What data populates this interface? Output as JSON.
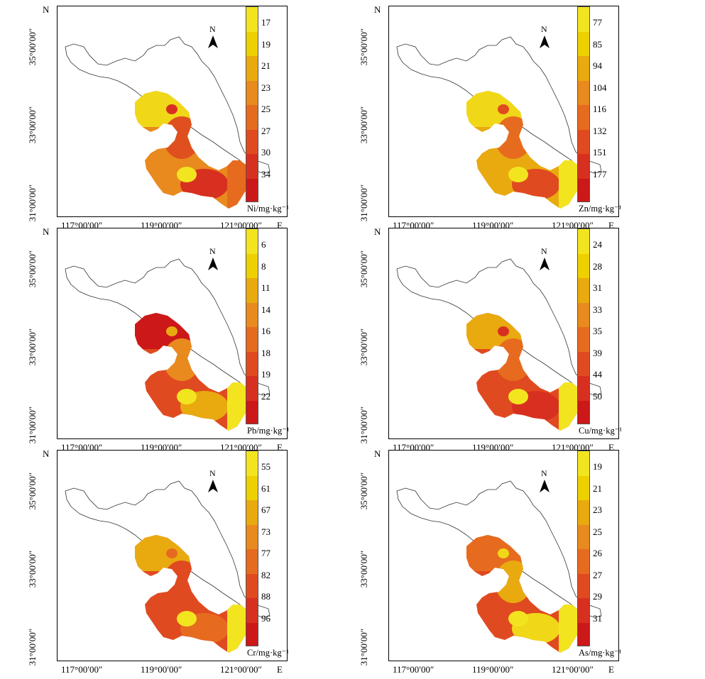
{
  "axes": {
    "lon_labels": [
      "117°00′00″",
      "119°00′00″",
      "121°00′00″"
    ],
    "east": "E",
    "north": "N",
    "lat_labels": [
      "35°00′00″",
      "33°00′00″",
      "31°00′00″"
    ],
    "north_arrow": "N"
  },
  "palette": [
    "#f2e520",
    "#eed000",
    "#e9aa10",
    "#e88a1e",
    "#e66b1f",
    "#e04a20",
    "#d83020",
    "#cc1818"
  ],
  "panels": [
    {
      "unit": "Ni/mg·kg⁻¹",
      "ticks": [
        "17",
        "19",
        "21",
        "23",
        "25",
        "27",
        "30",
        "34"
      ]
    },
    {
      "unit": "Zn/mg·kg⁻¹",
      "ticks": [
        "77",
        "85",
        "94",
        "104",
        "116",
        "132",
        "151",
        "177"
      ]
    },
    {
      "unit": "Pb/mg·kg⁻¹",
      "ticks": [
        "6",
        "8",
        "11",
        "14",
        "16",
        "18",
        "19",
        "22"
      ]
    },
    {
      "unit": "Cu/mg·kg⁻¹",
      "ticks": [
        "24",
        "28",
        "31",
        "33",
        "35",
        "39",
        "44",
        "50"
      ]
    },
    {
      "unit": "Cr/mg·kg⁻¹",
      "ticks": [
        "55",
        "61",
        "67",
        "73",
        "77",
        "82",
        "88",
        "96"
      ]
    },
    {
      "unit": "As/mg·kg⁻¹",
      "ticks": [
        "19",
        "21",
        "23",
        "25",
        "26",
        "27",
        "29",
        "31"
      ]
    }
  ]
}
